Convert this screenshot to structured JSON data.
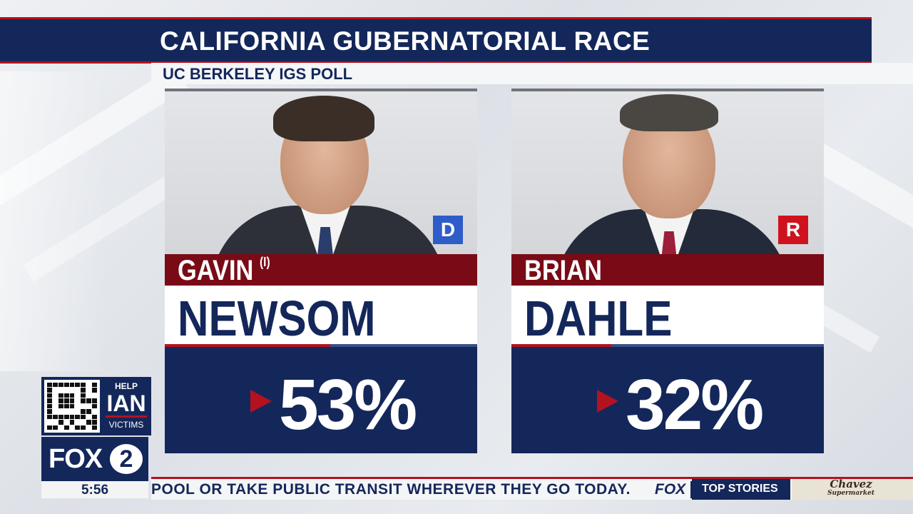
{
  "header": {
    "title": "CALIFORNIA GUBERNATORIAL RACE",
    "subtitle": "UC BERKELEY IGS POLL"
  },
  "candidates": [
    {
      "first_name": "GAVIN",
      "incumbent_marker": "(I)",
      "last_name": "NEWSOM",
      "party": "D",
      "party_color": "#2e5cc8",
      "percent_label": "53%",
      "percent": 53
    },
    {
      "first_name": "BRIAN",
      "incumbent_marker": "",
      "last_name": "DAHLE",
      "party": "R",
      "party_color": "#d0121e",
      "percent_label": "32%",
      "percent": 32
    }
  ],
  "promo": {
    "line1": "HELP",
    "line2": "IAN",
    "line3": "VICTIMS"
  },
  "station": {
    "logo": "FOX",
    "number": "2",
    "time": "5:56"
  },
  "ticker": {
    "text": "POOL OR TAKE PUBLIC TRANSIT WHEREVER THEY GO TODAY.",
    "brand": "FOX",
    "section": "TOP STORIES",
    "sponsor": "Chavez",
    "sponsor_sub": "Supermarket"
  },
  "colors": {
    "navy": "#14275a",
    "red": "#b3121f",
    "dark_red": "#7a0b16"
  }
}
